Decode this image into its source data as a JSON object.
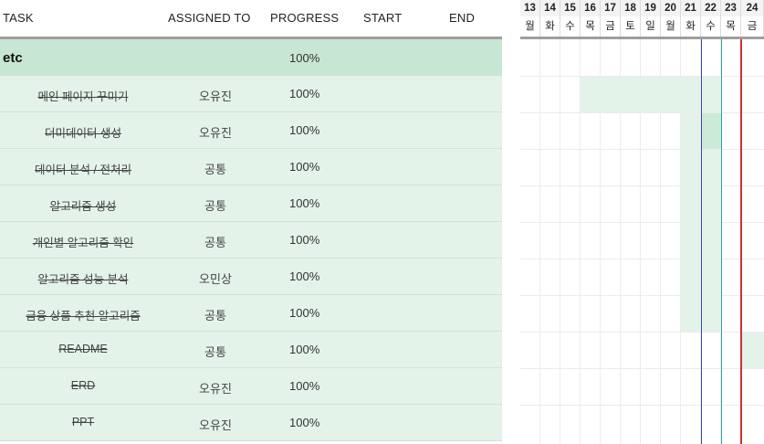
{
  "header": {
    "task": "TASK",
    "assigned_to": "ASSIGNED TO",
    "progress": "PROGRESS",
    "start": "START",
    "end": "END"
  },
  "group": {
    "name": "etc",
    "progress": "100%"
  },
  "tasks": [
    {
      "name": "메인 페이지 꾸미기",
      "assignee": "오유진",
      "progress": "100%"
    },
    {
      "name": "더미데이터 생성",
      "assignee": "오유진",
      "progress": "100%"
    },
    {
      "name": "데이터 분석 / 전처리",
      "assignee": "공통",
      "progress": "100%"
    },
    {
      "name": "알고리즘 생성",
      "assignee": "공통",
      "progress": "100%"
    },
    {
      "name": "개인별 알고리즘 확인",
      "assignee": "공통",
      "progress": "100%"
    },
    {
      "name": "알고리즘 성능 분석",
      "assignee": "오민상",
      "progress": "100%"
    },
    {
      "name": "금융 상품 추천 알고리즘",
      "assignee": "공통",
      "progress": "100%"
    },
    {
      "name": "README",
      "assignee": "공통",
      "progress": "100%"
    },
    {
      "name": "ERD",
      "assignee": "오유진",
      "progress": "100%"
    },
    {
      "name": "PPT",
      "assignee": "오유진",
      "progress": "100%"
    }
  ],
  "gantt": {
    "dates": [
      "13",
      "14",
      "15",
      "16",
      "17",
      "18",
      "19",
      "20",
      "21",
      "22",
      "23",
      "24"
    ],
    "weekdays": [
      "월",
      "화",
      "수",
      "목",
      "금",
      "토",
      "일",
      "월",
      "화",
      "수",
      "목",
      "금"
    ]
  },
  "colors": {
    "group_bg": "#c8e6d4",
    "task_bg": "#e3f3e9",
    "today_line": "#d32f2f",
    "blue_line": "#3949ab",
    "teal_line": "#26a69a"
  }
}
